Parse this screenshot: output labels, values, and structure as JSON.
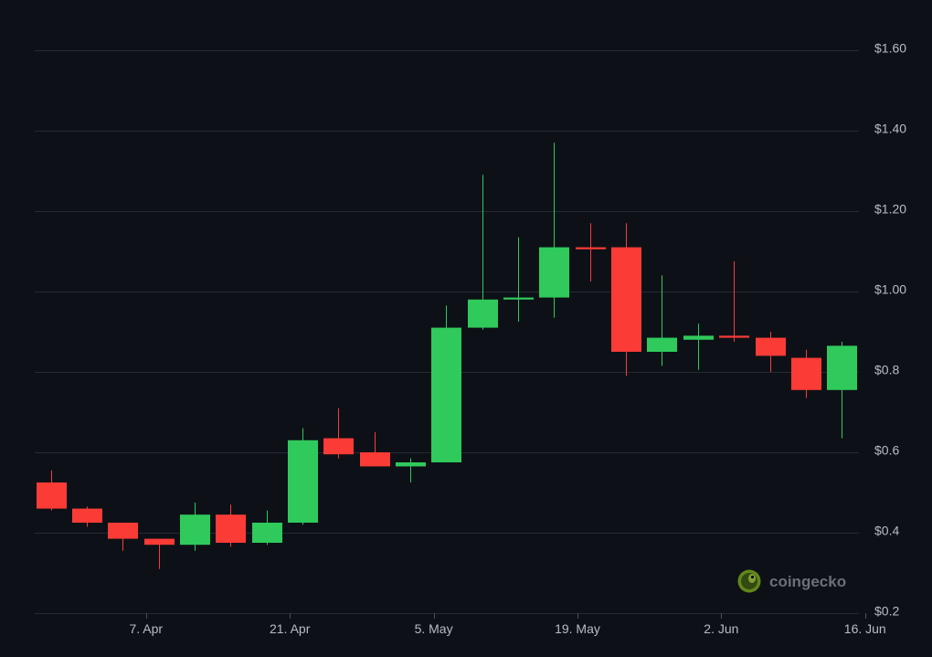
{
  "chart_data": {
    "type": "candlestick",
    "y_axis": {
      "position": "right",
      "ylim": [
        0.2,
        1.6
      ],
      "ticks": [
        0.2,
        0.4,
        0.6,
        0.8,
        1.0,
        1.2,
        1.4,
        1.6
      ],
      "tick_labels": [
        "$0.2",
        "$0.4",
        "$0.6",
        "$0.8",
        "$1.00",
        "$1.20",
        "$1.40",
        "$1.60"
      ]
    },
    "x_axis": {
      "tick_labels": [
        "7. Apr",
        "21. Apr",
        "5. May",
        "19. May",
        "2. Jun",
        "16. Jun"
      ],
      "tick_candle_index": [
        2.65,
        6.65,
        10.65,
        14.65,
        18.65,
        22.65
      ]
    },
    "candles": [
      {
        "open": 0.525,
        "high": 0.555,
        "low": 0.455,
        "close": 0.46
      },
      {
        "open": 0.46,
        "high": 0.465,
        "low": 0.415,
        "close": 0.425
      },
      {
        "open": 0.425,
        "high": 0.425,
        "low": 0.355,
        "close": 0.385
      },
      {
        "open": 0.385,
        "high": 0.385,
        "low": 0.31,
        "close": 0.37
      },
      {
        "open": 0.37,
        "high": 0.475,
        "low": 0.355,
        "close": 0.445
      },
      {
        "open": 0.445,
        "high": 0.47,
        "low": 0.365,
        "close": 0.375
      },
      {
        "open": 0.375,
        "high": 0.455,
        "low": 0.37,
        "close": 0.425
      },
      {
        "open": 0.425,
        "high": 0.66,
        "low": 0.42,
        "close": 0.63
      },
      {
        "open": 0.635,
        "high": 0.71,
        "low": 0.585,
        "close": 0.595
      },
      {
        "open": 0.6,
        "high": 0.65,
        "low": 0.565,
        "close": 0.565
      },
      {
        "open": 0.565,
        "high": 0.585,
        "low": 0.525,
        "close": 0.575
      },
      {
        "open": 0.575,
        "high": 0.965,
        "low": 0.575,
        "close": 0.91
      },
      {
        "open": 0.91,
        "high": 1.29,
        "low": 0.905,
        "close": 0.98
      },
      {
        "open": 0.98,
        "high": 1.135,
        "low": 0.925,
        "close": 0.985
      },
      {
        "open": 0.985,
        "high": 1.37,
        "low": 0.935,
        "close": 1.11
      },
      {
        "open": 1.11,
        "high": 1.17,
        "low": 1.025,
        "close": 1.105
      },
      {
        "open": 1.11,
        "high": 1.17,
        "low": 0.79,
        "close": 0.85
      },
      {
        "open": 0.85,
        "high": 1.04,
        "low": 0.815,
        "close": 0.885
      },
      {
        "open": 0.88,
        "high": 0.92,
        "low": 0.805,
        "close": 0.89
      },
      {
        "open": 0.89,
        "high": 1.075,
        "low": 0.875,
        "close": 0.885
      },
      {
        "open": 0.885,
        "high": 0.9,
        "low": 0.8,
        "close": 0.84
      },
      {
        "open": 0.835,
        "high": 0.855,
        "low": 0.735,
        "close": 0.755
      },
      {
        "open": 0.755,
        "high": 0.875,
        "low": 0.635,
        "close": 0.865
      }
    ],
    "colors": {
      "up": "#2fca5b",
      "down": "#fb3b36",
      "grid": "#242a33",
      "background": "#0d1117",
      "tick_text": "#b6bcc6"
    },
    "grid": true,
    "legend": "none"
  },
  "watermark": {
    "text": "coingecko",
    "icon": "gecko-logo-icon"
  }
}
